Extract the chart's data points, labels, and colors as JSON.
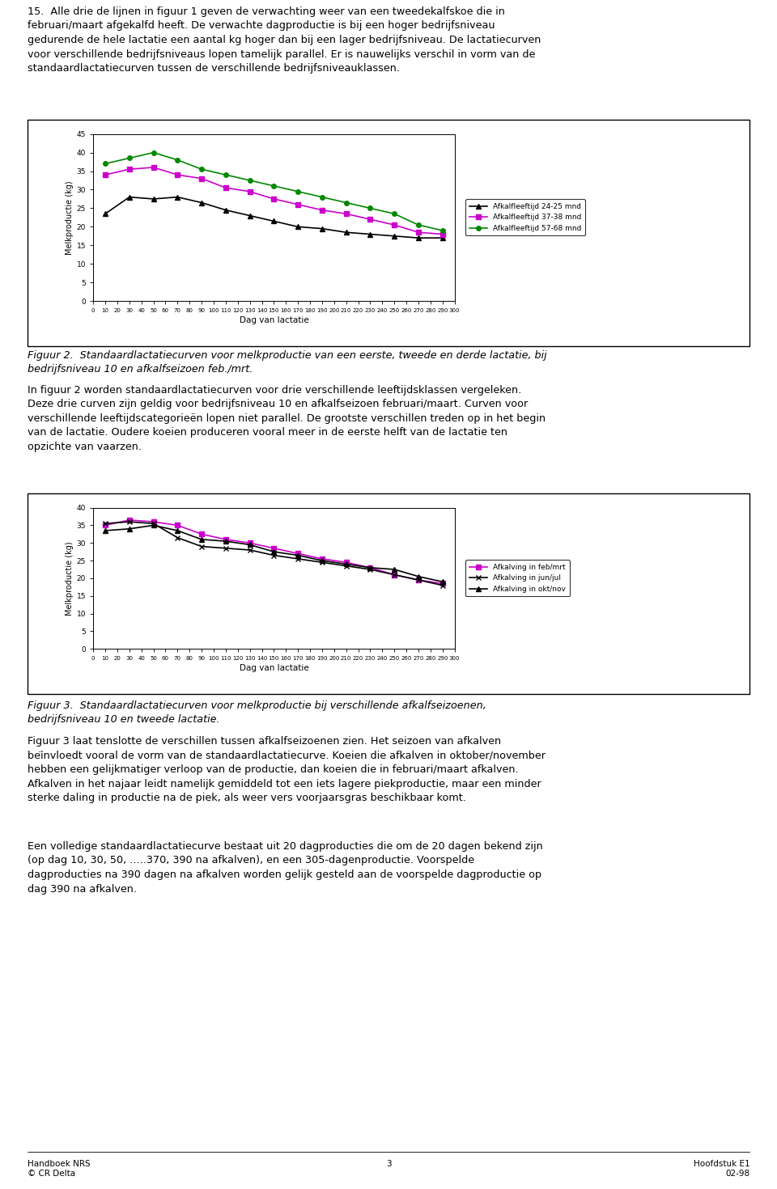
{
  "page_title_text": "15.  Alle drie de lijnen in figuur 1 geven de verwachting weer van een tweedekalfskoe die in\nfebruari/maart afgekalfd heeft. De verwachte dagproductie is bij een hoger bedrijfsniveau\ngedurende de hele lactatie een aantal kg hoger dan bij een lager bedrijfsniveau. De lactatiecurven\nvoor verschillende bedrijfsniveaus lopen tamelijk parallel. Er is nauwelijks verschil in vorm van de\nstandaardlactatiecurven tussen de verschillende bedrijfsniveauklassen.",
  "fig2_caption_line1": "Figuur 2.  Standaardlactatiecurven voor melkproductie van een eerste, tweede en derde lactatie, bij",
  "fig2_caption_line2": "bedrijfsniveau 10 en afkalfseizoen feb./mrt.",
  "fig3_caption_line1": "Figuur 3.  Standaardlactatiecurven voor melkproductie bij verschillende afkalfseizoenen,",
  "fig3_caption_line2": "bedrijfsniveau 10 en tweede lactatie.",
  "para2_text": "In figuur 2 worden standaardlactatiecurven voor drie verschillende leeftijdsklassen vergeleken.\nDeze drie curven zijn geldig voor bedrijfsniveau 10 en afkalfseizoen februari/maart. Curven voor\nverschillende leeftijdscategorieën lopen niet parallel. De grootste verschillen treden op in het begin\nvan de lactatie. Oudere koeien produceren vooral meer in de eerste helft van de lactatie ten\nopzichte van vaarzen.",
  "para3_text": "Figuur 3 laat tenslotte de verschillen tussen afkalfseizoenen zien. Het seizoen van afkalven\nbeïnvloedt vooral de vorm van de standaardlactatiecurve. Koeien die afkalven in oktober/november\nhebben een gelijkmatiger verloop van de productie, dan koeien die in februari/maart afkalven.\nAfkalven in het najaar leidt namelijk gemiddeld tot een iets lagere piekproductie, maar een minder\nsterke daling in productie na de piek, als weer vers voorjaarsgras beschikbaar komt.",
  "para4_text": "Een volledige standaardlactatiecurve bestaat uit 20 dagproducties die om de 20 dagen bekend zijn\n(op dag 10, 30, 50, .....370, 390 na afkalven), en een 305-dagenproductie. Voorspelde\ndagproducties na 390 dagen na afkalven worden gelijk gesteld aan de voorspelde dagproductie op\ndag 390 na afkalven.",
  "footer_left": "Handboek NRS\n© CR Delta",
  "footer_center": "3",
  "footer_right": "Hoofdstuk E1\n02-98",
  "x_ticks": [
    0,
    10,
    20,
    30,
    40,
    50,
    60,
    70,
    80,
    90,
    100,
    110,
    120,
    130,
    140,
    150,
    160,
    170,
    180,
    190,
    200,
    210,
    220,
    230,
    240,
    250,
    260,
    270,
    280,
    290,
    300
  ],
  "chart1": {
    "days": [
      10,
      30,
      50,
      70,
      90,
      110,
      130,
      150,
      170,
      190,
      210,
      230,
      250,
      270,
      290
    ],
    "series1_values": [
      23.5,
      28.0,
      27.5,
      28.0,
      26.5,
      24.5,
      23.0,
      21.5,
      20.0,
      19.5,
      18.5,
      18.0,
      17.5,
      17.0,
      17.0
    ],
    "series2_values": [
      34.0,
      35.5,
      36.0,
      34.0,
      33.0,
      30.5,
      29.5,
      27.5,
      26.0,
      24.5,
      23.5,
      22.0,
      20.5,
      18.5,
      18.0
    ],
    "series3_values": [
      37.0,
      38.5,
      40.0,
      38.0,
      35.5,
      34.0,
      32.5,
      31.0,
      29.5,
      28.0,
      26.5,
      25.0,
      23.5,
      20.5,
      19.0
    ],
    "series1_label": "Afkalfleeftijd 24-25 mnd",
    "series2_label": "Afkalfleeftijd 37-38 mnd",
    "series3_label": "Afkalfleeftijd 57-68 mnd",
    "series1_color": "#000000",
    "series2_color": "#CC00CC",
    "series3_color": "#008800",
    "series1_marker": "^",
    "series2_marker": "s",
    "series3_marker": "o",
    "ylabel": "Melkproductie (kg)",
    "xlabel": "Dag van lactatie",
    "ylim": [
      0,
      45
    ],
    "yticks": [
      0,
      5,
      10,
      15,
      20,
      25,
      30,
      35,
      40,
      45
    ]
  },
  "chart2": {
    "days": [
      10,
      30,
      50,
      70,
      90,
      110,
      130,
      150,
      170,
      190,
      210,
      230,
      250,
      270,
      290
    ],
    "series1_values": [
      35.0,
      36.5,
      36.0,
      35.0,
      32.5,
      31.0,
      30.0,
      28.5,
      27.0,
      25.5,
      24.5,
      23.0,
      21.0,
      19.5,
      18.5
    ],
    "series2_values": [
      35.5,
      36.0,
      35.5,
      31.5,
      29.0,
      28.5,
      28.0,
      26.5,
      25.5,
      24.5,
      23.5,
      22.5,
      21.0,
      19.5,
      18.0
    ],
    "series3_values": [
      33.5,
      34.0,
      35.0,
      33.5,
      31.0,
      30.5,
      29.5,
      27.5,
      26.5,
      25.0,
      24.0,
      23.0,
      22.5,
      20.5,
      19.0
    ],
    "series1_label": "Afkalving in feb/mrt",
    "series2_label": "Afkalving in jun/jul",
    "series3_label": "Afkalving in okt/nov",
    "series1_color": "#CC00CC",
    "series2_color": "#000000",
    "series3_color": "#000000",
    "series1_marker": "s",
    "series2_marker": "x",
    "series3_marker": "^",
    "ylabel": "Melkproductie (kg)",
    "xlabel": "Dag van lactatie",
    "ylim": [
      0,
      40
    ],
    "yticks": [
      0,
      5,
      10,
      15,
      20,
      25,
      30,
      35,
      40
    ]
  }
}
